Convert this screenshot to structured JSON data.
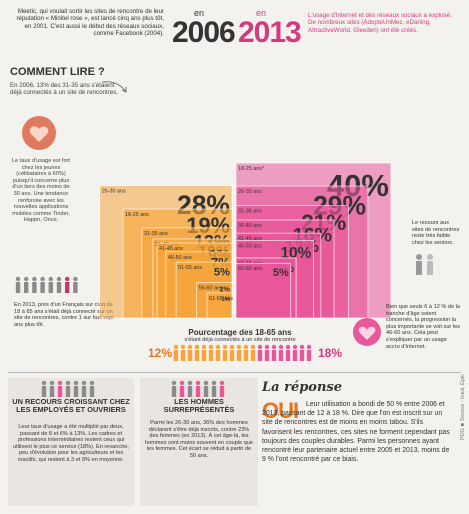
{
  "intro_2006": "Meetic, qui voulait sortir les sites de rencontre de leur réputation « Minitel rose », est lancé cinq ans plus tôt, en 2001. C'est aussi le début des réseaux sociaux, comme Facebook (2004).",
  "intro_2013": "L'usage d'Internet et des réseaux sociaux a explosé. De nombreux sites (AdopteUnMec, eDarling, AttractiveWorld, Gleeden) ont été créés.",
  "year_2006": {
    "en": "en",
    "year": "2006"
  },
  "year_2013": {
    "en": "en",
    "year": "2013"
  },
  "comment_lire": {
    "title": "COMMENT LIRE ?",
    "text": "En 2006, 13% des 31-35 ans s'étaient déjà connectés à un site de rencontres."
  },
  "left_callout": "Le taux d'usage est fort chez les jeunes (célibataires à 60%) puisqu'il concerne plus d'un tiers des moins de 30 ans. Une tendance renforcée avec les nouvelles applications mobiles comme Tinder, Happn, Once.",
  "bottom_left_callout": "En 2013, près d'un Français sur cinq de 18 à 65 ans s'était déjà connecté sur un site de rencontres, contre 1 sur huit sept ans plus tôt.",
  "right_callout_top": "Le recours aux sites de rencontres reste très faible chez les seniors.",
  "right_callout_bottom": "Bien que seuls 6 à 12 % de la tranche d'âge soient concernés, la progression la plus importante se voit sur les 46-60 ans. Cela peut s'expliquer par un usage accru d'Internet.",
  "chart_data": {
    "type": "bar",
    "categories": [
      "18-25 ans",
      "26-30 ans",
      "31-35 ans",
      "36-40 ans",
      "41-45 ans",
      "46-50 ans",
      "51-55 ans",
      "56-60 ans",
      "61-65 ans"
    ],
    "series": [
      {
        "name": "2006",
        "values": [
          19,
          28,
          13,
          10,
          9,
          7,
          5,
          2,
          1
        ]
      },
      {
        "name": "2013",
        "values": [
          40,
          29,
          21,
          16,
          12,
          10,
          6,
          5,
          6
        ]
      }
    ],
    "labels_2006": [
      "19%",
      "28%",
      "13%",
      "10%",
      "9%",
      "7%",
      "5%",
      "2%",
      "1%"
    ],
    "labels_2013": [
      "40%",
      "29%",
      "21%",
      "16%",
      "12%",
      "10%",
      "6%",
      "5%",
      "6%"
    ],
    "ages_2006_labels": [
      "18-25 ans",
      "26-30 ans",
      "31-35 ans",
      "36-40 ans",
      "41-45 ans",
      "46-50 ans",
      "51-55 ans",
      "56-60 ans",
      "61-65 ans"
    ],
    "ages_2013_labels": [
      "18-25 ans*",
      "26-30 ans",
      "31-35 ans",
      "36-40 ans",
      "41-45 ans",
      "46-50 ans",
      "51-55 ans",
      "56-60 ans",
      "61-65 ans"
    ]
  },
  "summary": {
    "title": "Pourcentage des 18-65 ans",
    "subtitle": "s'étant déjà connectés à un site de rencontre",
    "from": "12%",
    "to": "18%"
  },
  "bottom_col1": {
    "title": "UN RECOURS CROISSANT CHEZ LES EMPLOYÉS ET OUVRIERS",
    "text": "Leur taux d'usage a été multiplié par deux, passant de 8 et 6% à 13%. Les cadres et professions intermédiaires restent ceux qui utilisent le plus ce service (18%). En revanche, peu d'évolution pour les agriculteurs et les inactifs, qui restent à 3 et 9% en moyenne."
  },
  "bottom_col2": {
    "title": "LES HOMMES SURREPRÉSENTÉS",
    "text": "Parmi les 26-30 ans, 36% des hommes déclarent s'être déjà inscrits, contre 23% des femmes (en 2013). À cet âge-là, les hommes sont moins souvent en couple que les femmes. Cet écart se réduit à partir de 50 ans."
  },
  "reponse": {
    "title": "La réponse",
    "oui": "OUI",
    "text": "Leur utilisation a bondi de 50 % entre 2006 et 2013, passant de 12 à 18 %. Dire que l'on est inscrit sur un site de rencontres est de moins en moins tabou. S'ils favorisent les rencontres, ces sites ne forment cependant pas toujours des couples durables. Parmi les personnes ayant rencontré leur partenaire actuel entre 2005 et 2013, moins de 9 % l'ont rencontré par ce biais."
  },
  "side_credit": "PDG ■ Source : Ined, Épic",
  "colors": {
    "orange": "#f5a53c",
    "pink": "#e8579a",
    "accent_orange": "#e8761f",
    "accent_pink": "#d43a7d"
  }
}
